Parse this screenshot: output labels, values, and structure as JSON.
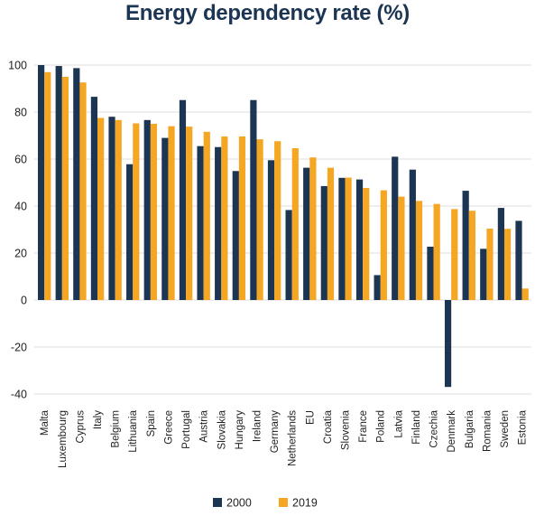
{
  "chart_data": {
    "type": "bar",
    "title": "Energy dependency rate (%)",
    "xlabel": "",
    "ylabel": "",
    "ylim": [
      -40,
      100
    ],
    "yticks": [
      100,
      80,
      60,
      40,
      20,
      0,
      -20,
      -40
    ],
    "grid": true,
    "legend_position": "bottom",
    "categories": [
      "Malta",
      "Luxembourg",
      "Cyprus",
      "Italy",
      "Belgium",
      "Lithuania",
      "Spain",
      "Greece",
      "Portugal",
      "Austria",
      "Slovakia",
      "Hungary",
      "Ireland",
      "Germany",
      "Netherlands",
      "EU",
      "Croatia",
      "Slovenia",
      "France",
      "Poland",
      "Latvia",
      "Finland",
      "Czechia",
      "Denmark",
      "Bulgaria",
      "Romania",
      "Sweden",
      "Estonia"
    ],
    "series": [
      {
        "name": "2000",
        "color": "#1c3553",
        "values": [
          100,
          99.6,
          98.7,
          86.5,
          78,
          57.8,
          76.6,
          69,
          85.1,
          65.5,
          65.1,
          54.9,
          85.1,
          59.5,
          38.3,
          56.3,
          48.5,
          52,
          51.3,
          10.6,
          61,
          55.5,
          22.7,
          -37,
          46.5,
          21.8,
          39.2,
          33.7
        ]
      },
      {
        "name": "2019",
        "color": "#f5a623",
        "values": [
          97,
          95,
          92.6,
          77.5,
          76.6,
          75.2,
          75,
          74,
          73.8,
          71.6,
          69.6,
          69.6,
          68.4,
          67.6,
          64.6,
          60.7,
          56.3,
          52.1,
          47.7,
          46.7,
          44,
          42.2,
          40.9,
          38.7,
          38,
          30.4,
          30.3,
          4.9
        ]
      }
    ]
  }
}
